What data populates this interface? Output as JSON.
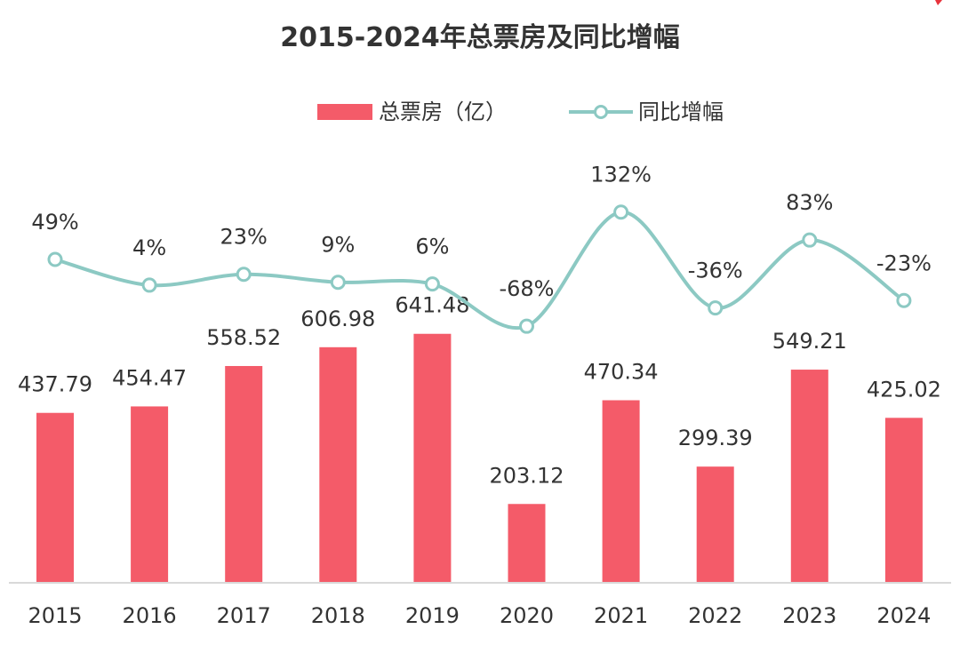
{
  "chart_data": {
    "type": "bar",
    "title": "2015-2024年总票房及同比增幅",
    "categories": [
      "2015",
      "2016",
      "2017",
      "2018",
      "2019",
      "2020",
      "2021",
      "2022",
      "2023",
      "2024"
    ],
    "series": [
      {
        "name": "总票房（亿）",
        "type": "bar",
        "values": [
          437.79,
          454.47,
          558.52,
          606.98,
          641.48,
          203.12,
          470.34,
          299.39,
          549.21,
          425.02
        ],
        "labels": [
          "437.79",
          "454.47",
          "558.52",
          "606.98",
          "641.48",
          "203.12",
          "470.34",
          "299.39",
          "549.21",
          "425.02"
        ],
        "color": "#f45b69"
      },
      {
        "name": "同比增幅",
        "type": "line",
        "values": [
          49,
          4,
          23,
          9,
          6,
          -68,
          132,
          -36,
          83,
          -23
        ],
        "labels": [
          "49%",
          "4%",
          "23%",
          "9%",
          "6%",
          "-68%",
          "132%",
          "-36%",
          "83%",
          "-23%"
        ],
        "color": "#8cc9c3"
      }
    ],
    "legend_position": "top-center",
    "grid": false
  }
}
